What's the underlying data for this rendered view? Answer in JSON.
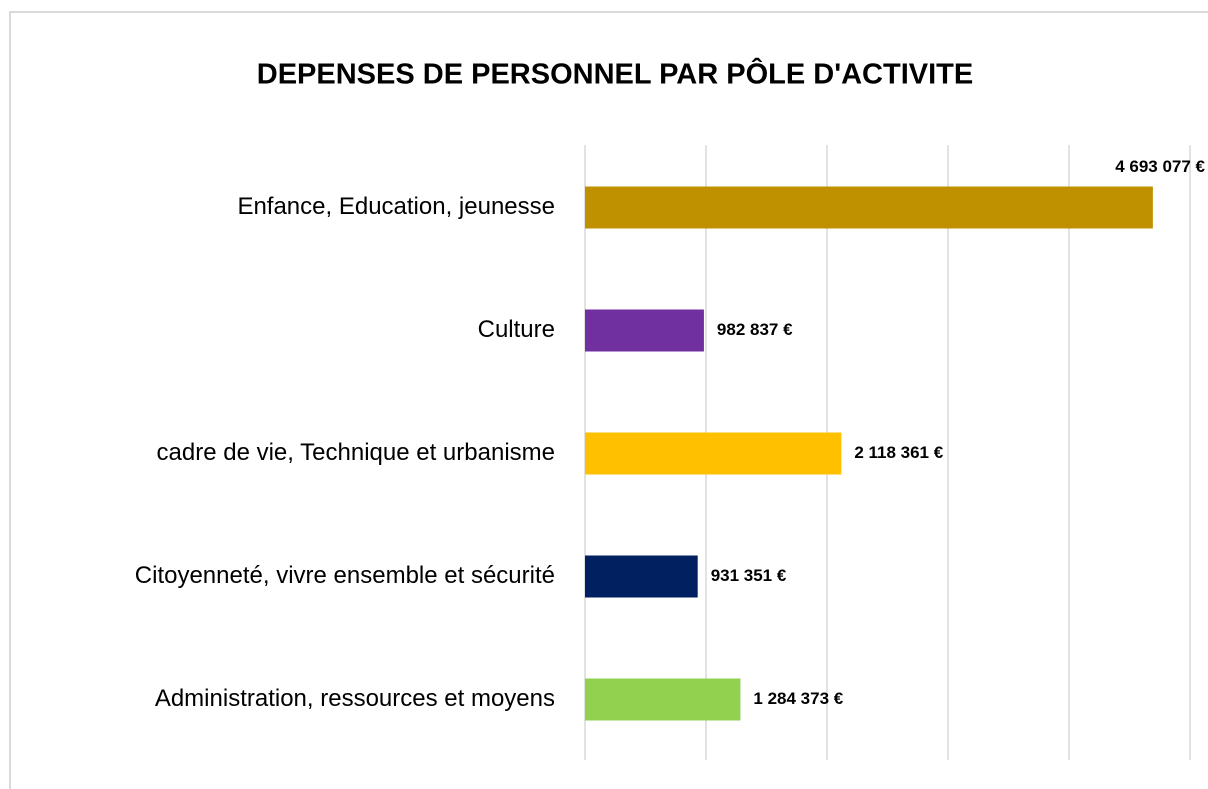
{
  "chart_data": {
    "type": "bar",
    "orientation": "horizontal",
    "title": "DEPENSES DE PERSONNEL PAR PÔLE D'ACTIVITE",
    "categories": [
      "Enfance, Education, jeunesse",
      "Culture",
      "cadre de vie, Technique et urbanisme",
      "Citoyenneté, vivre ensemble et sécurité",
      "Administration, ressources et moyens"
    ],
    "values": [
      4693077,
      982837,
      2118361,
      931351,
      1284373
    ],
    "value_labels": [
      "4 693 077 €",
      "982 837 €",
      "2 118 361 €",
      "931 351 €",
      "1 284 373 €"
    ],
    "colors": [
      "#bf9000",
      "#7030a0",
      "#ffc000",
      "#002060",
      "#92d050"
    ],
    "xlim": [
      0,
      5000000
    ],
    "xticks": [
      0,
      1000000,
      2000000,
      3000000,
      4000000,
      5000000
    ],
    "grid": true
  }
}
